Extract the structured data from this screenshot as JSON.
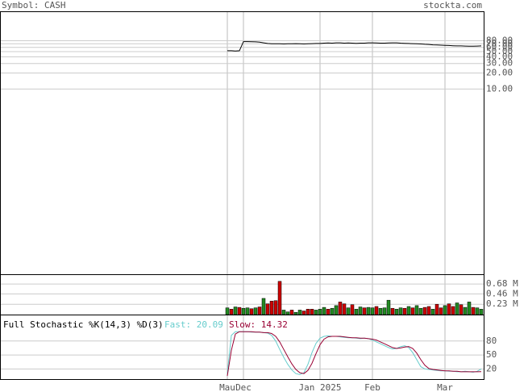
{
  "chart_data": {
    "type": "stock",
    "symbol_label": "Symbol: CASH",
    "site": "stockta.com",
    "x": [
      0,
      1,
      2,
      3,
      4,
      5,
      6,
      7,
      8,
      9,
      10,
      11,
      12,
      13,
      14,
      15,
      16,
      17,
      18,
      19,
      20,
      21,
      22,
      23,
      24,
      25,
      26,
      27,
      28,
      29,
      30,
      31,
      32,
      33,
      34,
      35,
      36,
      37,
      38,
      39,
      40,
      41,
      42,
      43,
      44,
      45,
      46,
      47,
      48,
      49,
      50,
      51,
      52,
      53,
      54,
      55,
      56,
      57,
      58,
      59,
      60,
      61,
      62,
      63
    ],
    "xlim": [
      -56.4,
      63.6
    ],
    "xticks": [
      {
        "value": 0,
        "label": "Mau"
      },
      {
        "value": 4,
        "label": "Dec"
      },
      {
        "value": 23,
        "label": "Jan 2025"
      },
      {
        "value": 36,
        "label": "Feb"
      },
      {
        "value": 54,
        "label": "Mar"
      }
    ],
    "price": {
      "color": "#000000",
      "log_scale": true,
      "ylim": [
        0.0035,
        283
      ],
      "yticks": [
        {
          "value": 80,
          "label": "80.00"
        },
        {
          "value": 70,
          "label": "70.00"
        },
        {
          "value": 60,
          "label": "60.00"
        },
        {
          "value": 50,
          "label": "50.00"
        },
        {
          "value": 40,
          "label": "40.00"
        },
        {
          "value": 30,
          "label": "30.00"
        },
        {
          "value": 20,
          "label": "20.00"
        },
        {
          "value": 10,
          "label": "10.00"
        }
      ],
      "values": [
        52,
        52,
        51.5,
        52,
        77,
        77,
        76.5,
        76,
        75,
        73,
        71,
        70,
        70,
        70,
        69.5,
        70,
        70,
        70.5,
        70,
        69.5,
        70,
        70.5,
        71,
        71,
        72,
        72.5,
        72,
        73,
        73,
        72,
        72.5,
        72,
        71.5,
        72,
        72,
        73,
        73,
        72.5,
        72,
        72,
        72.5,
        73,
        73,
        72,
        71.5,
        71,
        70.5,
        70,
        69.5,
        68.5,
        68,
        67,
        66.5,
        66,
        65.5,
        65,
        64.5,
        64,
        64,
        63.5,
        63,
        63,
        63.5,
        64
      ]
    },
    "volume": {
      "ylim": [
        0,
        0.88
      ],
      "yticks": [
        {
          "value": 0.68,
          "label": "0.68 M"
        },
        {
          "value": 0.46,
          "label": "0.46 M"
        },
        {
          "value": 0.23,
          "label": "0.23 M"
        }
      ],
      "values": [
        0.15,
        0.12,
        0.17,
        0.16,
        0.14,
        0.15,
        0.13,
        0.15,
        0.17,
        0.36,
        0.24,
        0.3,
        0.31,
        0.74,
        0.1,
        0.06,
        0.1,
        0.05,
        0.1,
        0.08,
        0.12,
        0.12,
        0.1,
        0.12,
        0.16,
        0.12,
        0.14,
        0.2,
        0.28,
        0.24,
        0.15,
        0.22,
        0.12,
        0.17,
        0.15,
        0.16,
        0.15,
        0.18,
        0.14,
        0.15,
        0.32,
        0.14,
        0.12,
        0.15,
        0.14,
        0.18,
        0.15,
        0.2,
        0.14,
        0.16,
        0.18,
        0.12,
        0.23,
        0.15,
        0.2,
        0.24,
        0.18,
        0.26,
        0.22,
        0.16,
        0.28,
        0.16,
        0.15,
        0.12
      ],
      "colors": [
        "#228b22",
        "#cc0000",
        "#228b22",
        "#cc0000",
        "#228b22",
        "#228b22",
        "#cc0000",
        "#228b22",
        "#cc0000",
        "#228b22",
        "#cc0000",
        "#cc0000",
        "#cc0000",
        "#cc0000",
        "#228b22",
        "#228b22",
        "#cc0000",
        "#228b22",
        "#228b22",
        "#cc0000",
        "#cc0000",
        "#cc0000",
        "#228b22",
        "#228b22",
        "#228b22",
        "#cc0000",
        "#228b22",
        "#228b22",
        "#cc0000",
        "#cc0000",
        "#228b22",
        "#cc0000",
        "#228b22",
        "#228b22",
        "#cc0000",
        "#228b22",
        "#228b22",
        "#cc0000",
        "#228b22",
        "#228b22",
        "#228b22",
        "#cc0000",
        "#228b22",
        "#228b22",
        "#cc0000",
        "#228b22",
        "#cc0000",
        "#228b22",
        "#228b22",
        "#cc0000",
        "#cc0000",
        "#228b22",
        "#cc0000",
        "#cc0000",
        "#228b22",
        "#cc0000",
        "#cc0000",
        "#228b22",
        "#cc0000",
        "#228b22",
        "#228b22",
        "#cc0000",
        "#228b22",
        "#228b22"
      ]
    },
    "stochastic": {
      "title": "Full Stochastic %K(14,3) %D(3)",
      "ylim": [
        0,
        135
      ],
      "yticks": [
        80,
        50,
        20
      ],
      "series": [
        {
          "name": "Fast: 20.09",
          "color": "#66cccc",
          "values": [
            10,
            92,
            100,
            100,
            100,
            100,
            99,
            99,
            99,
            98,
            97,
            92,
            80,
            62,
            45,
            30,
            18,
            10,
            8,
            12,
            30,
            55,
            75,
            86,
            90,
            91,
            90,
            90,
            89,
            88,
            87,
            87,
            86,
            85,
            86,
            85,
            82,
            78,
            74,
            70,
            66,
            63,
            64,
            68,
            70,
            66,
            55,
            40,
            25,
            20,
            19,
            18,
            17,
            16,
            16,
            15,
            15,
            14,
            14,
            15,
            14,
            13,
            15,
            20.09
          ]
        },
        {
          "name": "Slow: 14.32",
          "color": "#990033",
          "values": [
            5,
            60,
            95,
            100,
            100,
            100,
            100,
            99,
            99,
            98,
            98,
            96,
            90,
            78,
            62,
            46,
            31,
            19,
            12,
            10,
            17,
            32,
            53,
            72,
            84,
            89,
            90,
            90,
            90,
            89,
            88,
            87,
            87,
            86,
            86,
            85,
            84,
            82,
            78,
            74,
            70,
            66,
            64,
            65,
            67,
            68,
            64,
            54,
            40,
            28,
            21,
            19,
            18,
            17,
            16,
            16,
            15,
            15,
            14,
            14,
            14,
            14,
            14,
            14.32
          ]
        }
      ]
    }
  }
}
